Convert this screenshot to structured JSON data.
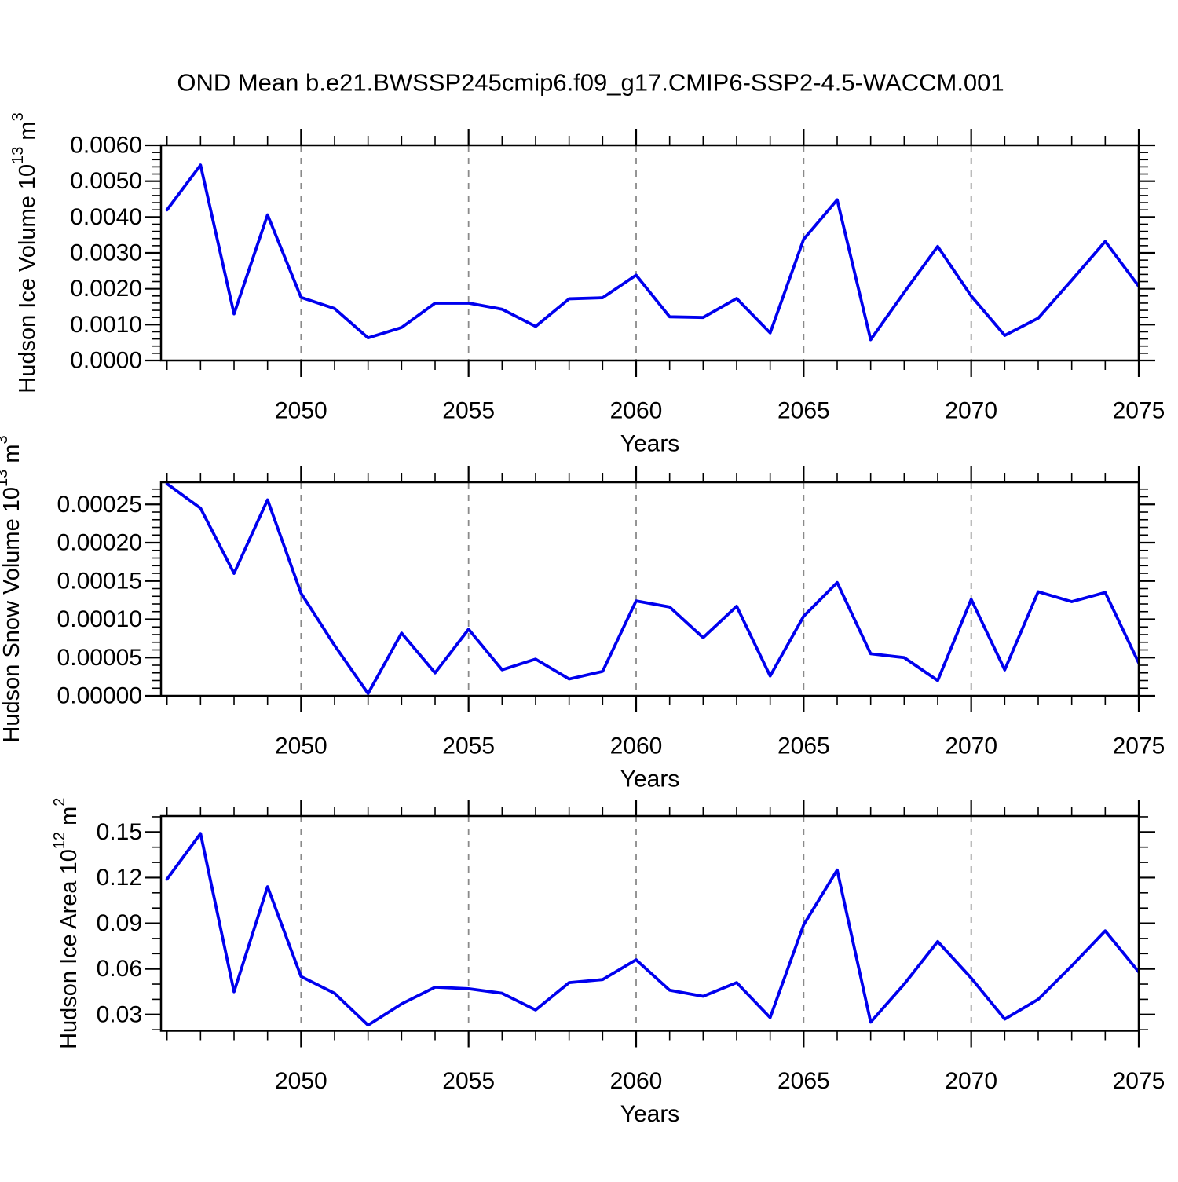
{
  "title": "OND Mean b.e21.BWSSP245cmip6.f09_g17.CMIP6-SSP2-4.5-WACCM.001",
  "colors": {
    "line": "#0000ee",
    "grid": "#8a8a8a",
    "axis": "#000000",
    "background": "#ffffff"
  },
  "chart_data": [
    {
      "type": "line",
      "name": "hudson-ice-volume",
      "ylabel_text": "Hudson Ice Volume 10^13 m^3",
      "ylabel_segments": [
        {
          "t": "Hudson Ice Volume 10"
        },
        {
          "t": "13",
          "sup": true
        },
        {
          "t": " m"
        },
        {
          "t": "3",
          "sup": true
        }
      ],
      "xlabel": "Years",
      "x": [
        2046,
        2047,
        2048,
        2049,
        2050,
        2051,
        2052,
        2053,
        2054,
        2055,
        2056,
        2057,
        2058,
        2059,
        2060,
        2061,
        2062,
        2063,
        2064,
        2065,
        2066,
        2067,
        2068,
        2069,
        2070,
        2071,
        2072,
        2073,
        2074,
        2075
      ],
      "values": [
        0.0042,
        0.00545,
        0.0013,
        0.00406,
        0.00176,
        0.00145,
        0.00063,
        0.00092,
        0.0016,
        0.0016,
        0.00143,
        0.00095,
        0.00172,
        0.00175,
        0.00238,
        0.00122,
        0.0012,
        0.00173,
        0.00077,
        0.00338,
        0.00448,
        0.00058,
        0.0019,
        0.00318,
        0.0018,
        0.0007,
        0.00118,
        0.00224,
        0.00332,
        0.00207
      ],
      "xlim": [
        2045.82,
        2075
      ],
      "ylim": [
        0.0,
        0.006
      ],
      "xtick_values": [
        2050,
        2055,
        2060,
        2065,
        2070,
        2075
      ],
      "xtick_labels": [
        "2050",
        "2055",
        "2060",
        "2065",
        "2070",
        "2075"
      ],
      "x_minor_step": 1,
      "ytick_values": [
        0.0,
        0.001,
        0.002,
        0.003,
        0.004,
        0.005,
        0.006
      ],
      "ytick_labels": [
        "0.0000",
        "0.0010",
        "0.0020",
        "0.0030",
        "0.0040",
        "0.0050",
        "0.0060"
      ],
      "y_minor_step": 0.0002,
      "grid_x": [
        2050,
        2055,
        2060,
        2065,
        2070
      ],
      "grid_on": true,
      "legend": "none"
    },
    {
      "type": "line",
      "name": "hudson-snow-volume",
      "ylabel_text": "Hudson Snow Volume 10^13 m^3",
      "ylabel_segments": [
        {
          "t": "Hudson Snow Volume 10"
        },
        {
          "t": "13",
          "sup": true
        },
        {
          "t": " m"
        },
        {
          "t": "3",
          "sup": true
        }
      ],
      "xlabel": "Years",
      "x": [
        2046,
        2047,
        2048,
        2049,
        2050,
        2051,
        2052,
        2053,
        2054,
        2055,
        2056,
        2057,
        2058,
        2059,
        2060,
        2061,
        2062,
        2063,
        2064,
        2065,
        2066,
        2067,
        2068,
        2069,
        2070,
        2071,
        2072,
        2073,
        2074,
        2075
      ],
      "values": [
        0.000277,
        0.000245,
        0.00016,
        0.000256,
        0.000134,
        6.6e-05,
        3e-06,
        8.2e-05,
        3e-05,
        8.7e-05,
        3.4e-05,
        4.8e-05,
        2.2e-05,
        3.2e-05,
        0.000124,
        0.000116,
        7.6e-05,
        0.000117,
        2.6e-05,
        0.000104,
        0.000148,
        5.5e-05,
        5e-05,
        2e-05,
        0.000126,
        3.4e-05,
        0.000136,
        0.000123,
        0.000135,
        4.3e-05
      ],
      "xlim": [
        2045.82,
        2075
      ],
      "ylim": [
        0.0,
        0.000279
      ],
      "xtick_values": [
        2050,
        2055,
        2060,
        2065,
        2070,
        2075
      ],
      "xtick_labels": [
        "2050",
        "2055",
        "2060",
        "2065",
        "2070",
        "2075"
      ],
      "x_minor_step": 1,
      "ytick_values": [
        0.0,
        5e-05,
        0.0001,
        0.00015,
        0.0002,
        0.00025
      ],
      "ytick_labels": [
        "0.00000",
        "0.00005",
        "0.00010",
        "0.00015",
        "0.00020",
        "0.00025"
      ],
      "y_minor_step": 1e-05,
      "grid_x": [
        2050,
        2055,
        2060,
        2065,
        2070
      ],
      "grid_on": true,
      "legend": "none"
    },
    {
      "type": "line",
      "name": "hudson-ice-area",
      "ylabel_text": "Hudson Ice Area 10^12 m^2",
      "ylabel_segments": [
        {
          "t": "Hudson Ice Area 10"
        },
        {
          "t": "12",
          "sup": true
        },
        {
          "t": " m"
        },
        {
          "t": "2",
          "sup": true
        }
      ],
      "xlabel": "Years",
      "x": [
        2046,
        2047,
        2048,
        2049,
        2050,
        2051,
        2052,
        2053,
        2054,
        2055,
        2056,
        2057,
        2058,
        2059,
        2060,
        2061,
        2062,
        2063,
        2064,
        2065,
        2066,
        2067,
        2068,
        2069,
        2070,
        2071,
        2072,
        2073,
        2074,
        2075
      ],
      "values": [
        0.119,
        0.149,
        0.045,
        0.114,
        0.055,
        0.044,
        0.023,
        0.037,
        0.048,
        0.047,
        0.044,
        0.033,
        0.051,
        0.053,
        0.066,
        0.046,
        0.042,
        0.051,
        0.028,
        0.089,
        0.125,
        0.025,
        0.05,
        0.078,
        0.054,
        0.027,
        0.04,
        0.062,
        0.085,
        0.058
      ],
      "xlim": [
        2045.82,
        2075
      ],
      "ylim": [
        0.0193,
        0.1605
      ],
      "xtick_values": [
        2050,
        2055,
        2060,
        2065,
        2070,
        2075
      ],
      "xtick_labels": [
        "2050",
        "2055",
        "2060",
        "2065",
        "2070",
        "2075"
      ],
      "x_minor_step": 1,
      "ytick_values": [
        0.03,
        0.06,
        0.09,
        0.12,
        0.15
      ],
      "ytick_labels": [
        "0.03",
        "0.06",
        "0.09",
        "0.12",
        "0.15"
      ],
      "y_minor_step": 0.01,
      "grid_x": [
        2050,
        2055,
        2060,
        2065,
        2070
      ],
      "grid_on": true,
      "legend": "none"
    }
  ]
}
